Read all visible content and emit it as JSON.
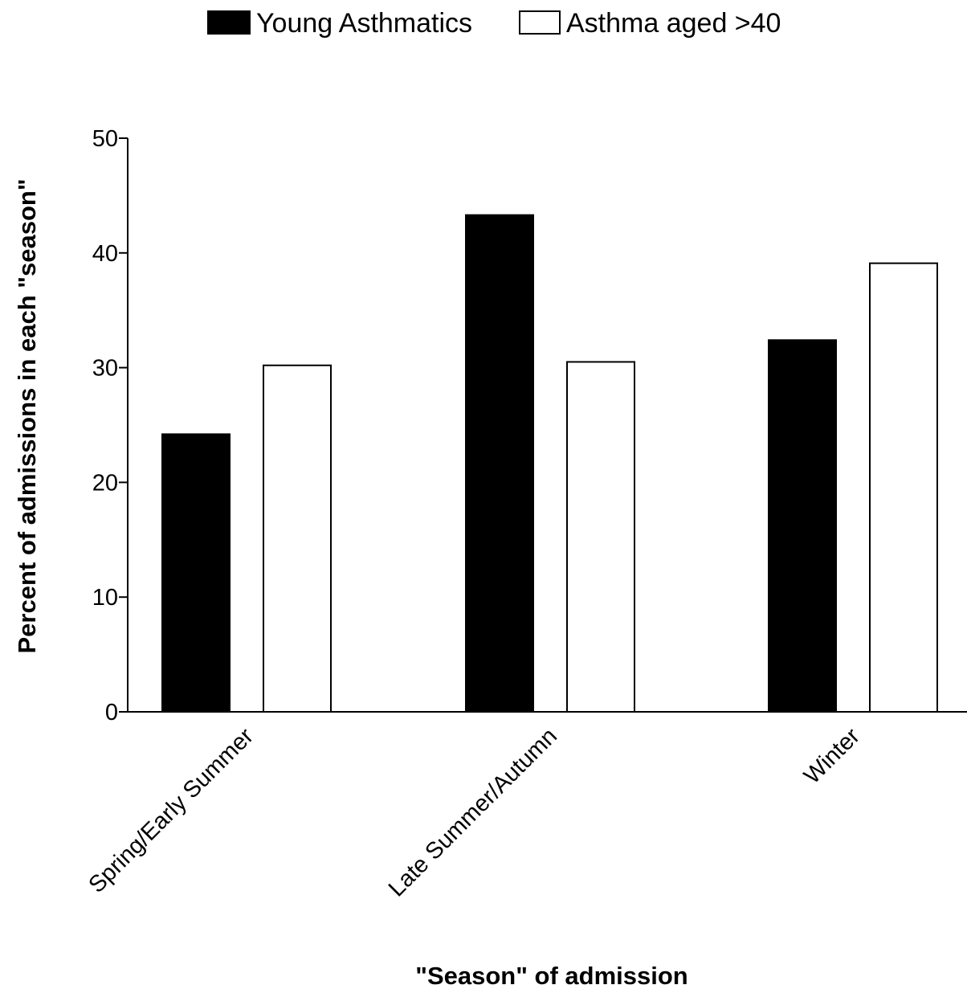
{
  "chart_data": {
    "type": "bar",
    "categories": [
      "Spring/Early Summer",
      "Late Summer/Autumn",
      "Winter"
    ],
    "series": [
      {
        "name": "Young Asthmatics",
        "values": [
          24.2,
          43.3,
          32.4
        ],
        "color": "#000000"
      },
      {
        "name": "Asthma aged >40",
        "values": [
          30.2,
          30.5,
          39.1
        ],
        "color": "#ffffff"
      }
    ],
    "title": "",
    "xlabel": "\"Season\" of admission",
    "ylabel": "Percent of admissions in each \"season\"",
    "ylim": [
      0,
      50
    ],
    "yticks": [
      0,
      10,
      20,
      30,
      40,
      50
    ],
    "grid": false,
    "legend": "top-center"
  }
}
